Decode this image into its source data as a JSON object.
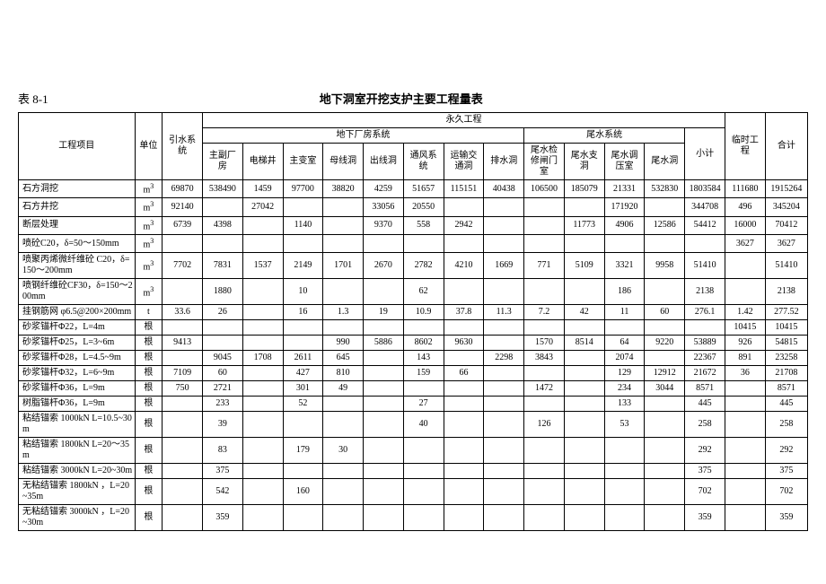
{
  "table_label": "表 8-1",
  "table_title": "地下洞室开挖支护主要工程量表",
  "headers": {
    "project": "工程项目",
    "unit": "单位",
    "yinshui": "引水系统",
    "yongjiu": "永久工程",
    "dixia": "地下厂房系统",
    "weishui": "尾水系统",
    "xiaoji": "小计",
    "linshi": "临时工程",
    "heji": "合计",
    "cols": {
      "zhufu": "主副厂房",
      "dianti": "电梯井",
      "zhubian": "主变室",
      "muxian": "母线洞",
      "chuxian": "出线洞",
      "tongfeng": "通风系统",
      "yunshu": "运输交通洞",
      "paishui": "排水洞",
      "weishuijian": "尾水检修闸门室",
      "weishuizhi": "尾水支洞",
      "weishuitiao": "尾水调压室",
      "weishuidong": "尾水洞"
    }
  },
  "rows": [
    {
      "name": "石方洞挖",
      "unit": "m³",
      "v": [
        "69870",
        "538490",
        "1459",
        "97700",
        "38820",
        "4259",
        "51657",
        "115151",
        "40438",
        "106500",
        "185079",
        "21331",
        "532830",
        "1803584",
        "111680",
        "1915264"
      ]
    },
    {
      "name": "石方井挖",
      "unit": "m³",
      "v": [
        "92140",
        "",
        "27042",
        "",
        "",
        "33056",
        "20550",
        "",
        "",
        "",
        "",
        "171920",
        "",
        "344708",
        "496",
        "345204"
      ]
    },
    {
      "name": "断层处理",
      "unit": "m³",
      "v": [
        "6739",
        "4398",
        "",
        "1140",
        "",
        "9370",
        "558",
        "2942",
        "",
        "",
        "11773",
        "4906",
        "12586",
        "54412",
        "16000",
        "70412"
      ]
    },
    {
      "name": "喷砼C20，δ=50～150mm",
      "unit": "m³",
      "v": [
        "",
        "",
        "",
        "",
        "",
        "",
        "",
        "",
        "",
        "",
        "",
        "",
        "",
        "",
        "3627",
        "3627"
      ]
    },
    {
      "name": "喷聚丙烯微纤维砼 C20，δ=150～200mm",
      "unit": "m³",
      "v": [
        "7702",
        "7831",
        "1537",
        "2149",
        "1701",
        "2670",
        "2782",
        "4210",
        "1669",
        "771",
        "5109",
        "3321",
        "9958",
        "51410",
        "",
        "51410"
      ]
    },
    {
      "name": "喷钢纤维砼CF30，δ=150～200mm",
      "unit": "m³",
      "v": [
        "",
        "1880",
        "",
        "10",
        "",
        "",
        "62",
        "",
        "",
        "",
        "",
        "186",
        "",
        "2138",
        "",
        "2138"
      ]
    },
    {
      "name": "挂钢筋网 φ6.5@200×200mm",
      "unit": "t",
      "v": [
        "33.6",
        "26",
        "",
        "16",
        "1.3",
        "19",
        "10.9",
        "37.8",
        "11.3",
        "7.2",
        "42",
        "11",
        "60",
        "276.1",
        "1.42",
        "277.52"
      ]
    },
    {
      "name": "砂浆锚杆Φ22，L=4m",
      "unit": "根",
      "v": [
        "",
        "",
        "",
        "",
        "",
        "",
        "",
        "",
        "",
        "",
        "",
        "",
        "",
        "",
        "10415",
        "10415"
      ]
    },
    {
      "name": "砂浆锚杆Φ25，L=3~6m",
      "unit": "根",
      "v": [
        "9413",
        "",
        "",
        "",
        "990",
        "5886",
        "8602",
        "9630",
        "",
        "1570",
        "8514",
        "64",
        "9220",
        "53889",
        "926",
        "54815"
      ]
    },
    {
      "name": "砂浆锚杆Φ28，L=4.5~9m",
      "unit": "根",
      "v": [
        "",
        "9045",
        "1708",
        "2611",
        "645",
        "",
        "143",
        "",
        "2298",
        "3843",
        "",
        "2074",
        "",
        "22367",
        "891",
        "23258"
      ]
    },
    {
      "name": "砂浆锚杆Φ32，L=6~9m",
      "unit": "根",
      "v": [
        "7109",
        "60",
        "",
        "427",
        "810",
        "",
        "159",
        "66",
        "",
        "",
        "",
        "129",
        "12912",
        "21672",
        "36",
        "21708"
      ]
    },
    {
      "name": "砂浆锚杆Φ36，L=9m",
      "unit": "根",
      "v": [
        "750",
        "2721",
        "",
        "301",
        "49",
        "",
        "",
        "",
        "",
        "1472",
        "",
        "234",
        "3044",
        "8571",
        "",
        "8571"
      ]
    },
    {
      "name": "树脂锚杆Φ36，L=9m",
      "unit": "根",
      "v": [
        "",
        "233",
        "",
        "52",
        "",
        "",
        "27",
        "",
        "",
        "",
        "",
        "133",
        "",
        "445",
        "",
        "445"
      ]
    },
    {
      "name": "粘结锚索 1000kN  L=10.5~30m",
      "unit": "根",
      "v": [
        "",
        "39",
        "",
        "",
        "",
        "",
        "40",
        "",
        "",
        "126",
        "",
        "53",
        "",
        "258",
        "",
        "258"
      ]
    },
    {
      "name": "粘结锚索 1800kN  L=20～35m",
      "unit": "根",
      "v": [
        "",
        "83",
        "",
        "179",
        "30",
        "",
        "",
        "",
        "",
        "",
        "",
        "",
        "",
        "292",
        "",
        "292"
      ]
    },
    {
      "name": "粘结锚索 3000kN  L=20~30m",
      "unit": "根",
      "v": [
        "",
        "375",
        "",
        "",
        "",
        "",
        "",
        "",
        "",
        "",
        "",
        "",
        "",
        "375",
        "",
        "375"
      ]
    },
    {
      "name": "无粘结锚索 1800kN ，L=20~35m",
      "unit": "根",
      "v": [
        "",
        "542",
        "",
        "160",
        "",
        "",
        "",
        "",
        "",
        "",
        "",
        "",
        "",
        "702",
        "",
        "702"
      ]
    },
    {
      "name": "无粘结锚索 3000kN ，L=20~30m",
      "unit": "根",
      "v": [
        "",
        "359",
        "",
        "",
        "",
        "",
        "",
        "",
        "",
        "",
        "",
        "",
        "",
        "359",
        "",
        "359"
      ]
    }
  ]
}
